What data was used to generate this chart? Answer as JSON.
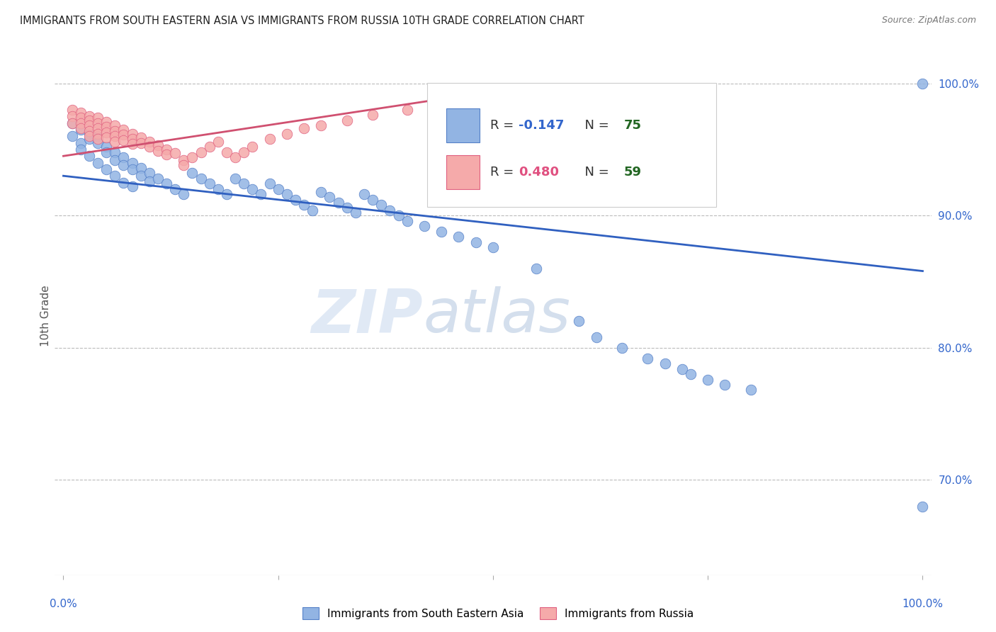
{
  "title": "IMMIGRANTS FROM SOUTH EASTERN ASIA VS IMMIGRANTS FROM RUSSIA 10TH GRADE CORRELATION CHART",
  "source": "Source: ZipAtlas.com",
  "ylabel": "10th Grade",
  "legend_blue_r": "-0.147",
  "legend_blue_n": "75",
  "legend_pink_r": "0.480",
  "legend_pink_n": "59",
  "watermark_zip": "ZIP",
  "watermark_atlas": "atlas",
  "blue_dot_color": "#92B4E3",
  "blue_dot_edge": "#5580C8",
  "pink_dot_color": "#F5AAAA",
  "pink_dot_edge": "#E06080",
  "blue_line_color": "#3060C0",
  "pink_line_color": "#D05070",
  "grid_color": "#BBBBBB",
  "title_color": "#222222",
  "axis_label_color": "#3366CC",
  "right_tick_color": "#3366CC",
  "legend_r_blue": "#3366CC",
  "legend_r_pink": "#E05080",
  "legend_n_color": "#226622",
  "blue_line_x0": 0.0,
  "blue_line_x1": 1.0,
  "blue_line_y0": 0.93,
  "blue_line_y1": 0.858,
  "pink_line_x0": 0.0,
  "pink_line_x1": 0.5,
  "pink_line_y0": 0.945,
  "pink_line_y1": 0.994,
  "ymin": 0.628,
  "ymax": 1.02,
  "xmin": -0.01,
  "xmax": 1.01,
  "yticks": [
    0.7,
    0.8,
    0.9,
    1.0
  ],
  "ytick_labels": [
    "70.0%",
    "80.0%",
    "90.0%",
    "100.0%"
  ],
  "blue_x": [
    0.01,
    0.01,
    0.02,
    0.02,
    0.02,
    0.03,
    0.03,
    0.03,
    0.04,
    0.04,
    0.04,
    0.05,
    0.05,
    0.05,
    0.06,
    0.06,
    0.06,
    0.07,
    0.07,
    0.07,
    0.08,
    0.08,
    0.08,
    0.09,
    0.09,
    0.1,
    0.1,
    0.11,
    0.12,
    0.13,
    0.14,
    0.15,
    0.16,
    0.17,
    0.18,
    0.19,
    0.2,
    0.21,
    0.22,
    0.23,
    0.24,
    0.25,
    0.26,
    0.27,
    0.28,
    0.29,
    0.3,
    0.31,
    0.32,
    0.33,
    0.34,
    0.35,
    0.36,
    0.37,
    0.38,
    0.39,
    0.4,
    0.42,
    0.44,
    0.46,
    0.48,
    0.5,
    0.55,
    0.6,
    0.62,
    0.65,
    0.68,
    0.7,
    0.72,
    0.73,
    0.75,
    0.77,
    0.8,
    1.0,
    1.0
  ],
  "blue_y": [
    0.97,
    0.96,
    0.965,
    0.955,
    0.95,
    0.962,
    0.958,
    0.945,
    0.96,
    0.955,
    0.94,
    0.952,
    0.948,
    0.935,
    0.948,
    0.942,
    0.93,
    0.944,
    0.938,
    0.925,
    0.94,
    0.935,
    0.922,
    0.936,
    0.93,
    0.932,
    0.926,
    0.928,
    0.924,
    0.92,
    0.916,
    0.932,
    0.928,
    0.924,
    0.92,
    0.916,
    0.928,
    0.924,
    0.92,
    0.916,
    0.924,
    0.92,
    0.916,
    0.912,
    0.908,
    0.904,
    0.918,
    0.914,
    0.91,
    0.906,
    0.902,
    0.916,
    0.912,
    0.908,
    0.904,
    0.9,
    0.896,
    0.892,
    0.888,
    0.884,
    0.88,
    0.876,
    0.86,
    0.82,
    0.808,
    0.8,
    0.792,
    0.788,
    0.784,
    0.78,
    0.776,
    0.772,
    0.768,
    0.68,
    1.0
  ],
  "pink_x": [
    0.01,
    0.01,
    0.01,
    0.02,
    0.02,
    0.02,
    0.02,
    0.03,
    0.03,
    0.03,
    0.03,
    0.03,
    0.04,
    0.04,
    0.04,
    0.04,
    0.04,
    0.05,
    0.05,
    0.05,
    0.05,
    0.06,
    0.06,
    0.06,
    0.06,
    0.07,
    0.07,
    0.07,
    0.08,
    0.08,
    0.08,
    0.09,
    0.09,
    0.1,
    0.1,
    0.11,
    0.11,
    0.12,
    0.12,
    0.13,
    0.14,
    0.14,
    0.15,
    0.16,
    0.17,
    0.18,
    0.19,
    0.2,
    0.21,
    0.22,
    0.24,
    0.26,
    0.28,
    0.3,
    0.33,
    0.36,
    0.4,
    0.48,
    0.5
  ],
  "pink_y": [
    0.98,
    0.975,
    0.97,
    0.978,
    0.974,
    0.97,
    0.966,
    0.975,
    0.972,
    0.968,
    0.964,
    0.96,
    0.974,
    0.97,
    0.966,
    0.962,
    0.958,
    0.971,
    0.967,
    0.963,
    0.959,
    0.968,
    0.964,
    0.96,
    0.956,
    0.965,
    0.961,
    0.957,
    0.962,
    0.958,
    0.954,
    0.959,
    0.955,
    0.956,
    0.952,
    0.953,
    0.949,
    0.95,
    0.946,
    0.947,
    0.942,
    0.938,
    0.944,
    0.948,
    0.952,
    0.956,
    0.948,
    0.944,
    0.948,
    0.952,
    0.958,
    0.962,
    0.966,
    0.968,
    0.972,
    0.976,
    0.98,
    0.988,
    0.992
  ]
}
